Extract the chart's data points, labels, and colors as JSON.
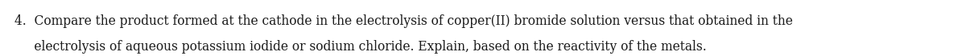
{
  "line1": "4.  Compare the product formed at the cathode in the electrolysis of copper(II) bromide solution versus that obtained in the",
  "line2": "     electrolysis of aqueous potassium iodide or sodium chloride. Explain, based on the reactivity of the metals.",
  "font_size": 11.2,
  "text_color": "#1a1a1a",
  "background_color": "#ffffff",
  "fig_width": 12.0,
  "fig_height": 0.7,
  "dpi": 100
}
